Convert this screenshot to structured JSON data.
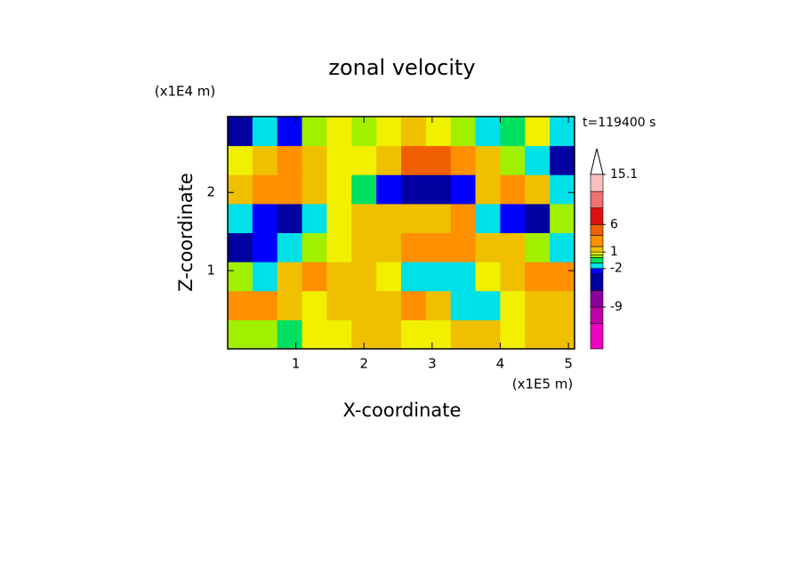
{
  "chart_data": {
    "type": "contour",
    "title": "zonal velocity",
    "x_label": "X-coordinate",
    "y_label": "Z-coordinate",
    "x_unit_label": "(x1E5 m)",
    "y_unit_label": "(x1E4 m)",
    "annotation": "t=119400 s",
    "xlim": [
      0,
      5.09
    ],
    "ylim": [
      0,
      2.97
    ],
    "xticks": [
      1,
      2,
      3,
      4,
      5
    ],
    "yticks": [
      1,
      2
    ],
    "levels": [
      -16.6,
      -12,
      -9,
      -6,
      -3,
      -2,
      -1,
      0,
      0.5,
      1,
      2,
      4,
      6,
      9,
      12,
      15.1
    ],
    "colors": [
      "#f000c0",
      "#c000a8",
      "#8c00a0",
      "#0000a0",
      "#0000ff",
      "#00e0e8",
      "#00e060",
      "#a0f000",
      "#f0f000",
      "#f0c000",
      "#ff9000",
      "#f06000",
      "#e01010",
      "#f07070",
      "#f8c0c0"
    ],
    "colorbar_ticks": [
      -9,
      -2,
      1,
      6,
      15.1
    ],
    "z": [
      [
        0,
        0.3,
        -1,
        0.7,
        0.7,
        1.5,
        1.5,
        0.7,
        0.7,
        1.5,
        1.5,
        0.7,
        1.5,
        1.5
      ],
      [
        3,
        3,
        1.5,
        0.7,
        1.5,
        1.5,
        1.5,
        3,
        1.5,
        -1.5,
        -1.5,
        0.7,
        1.5,
        1.5
      ],
      [
        0,
        -1.5,
        1.5,
        3,
        1.5,
        1.5,
        0.7,
        -1.5,
        -1.5,
        -1.5,
        0.7,
        1.5,
        3,
        3
      ],
      [
        -4,
        -2.5,
        -1.5,
        0.3,
        0.7,
        1.5,
        1.5,
        3,
        3,
        3,
        1.5,
        1.5,
        0.3,
        -1.5
      ],
      [
        -1.5,
        -2.5,
        -4,
        -1.5,
        0.7,
        1.5,
        1.5,
        1.5,
        1.5,
        3,
        -1.5,
        -2.5,
        -4,
        0.3
      ],
      [
        1.5,
        3,
        3,
        1.5,
        0.7,
        -0.5,
        -2.5,
        -5,
        -5,
        -2.5,
        1.5,
        3,
        1.5,
        -1.5
      ],
      [
        0.7,
        1.5,
        3,
        1.5,
        0.7,
        0.7,
        1.5,
        5,
        5,
        3,
        1.5,
        0.3,
        -1.5,
        -4
      ],
      [
        -4,
        -1.5,
        -2.5,
        0.3,
        0.7,
        0.3,
        0.7,
        1.5,
        0.7,
        0.3,
        -1.5,
        -0.5,
        0.7,
        -1.5
      ]
    ]
  }
}
